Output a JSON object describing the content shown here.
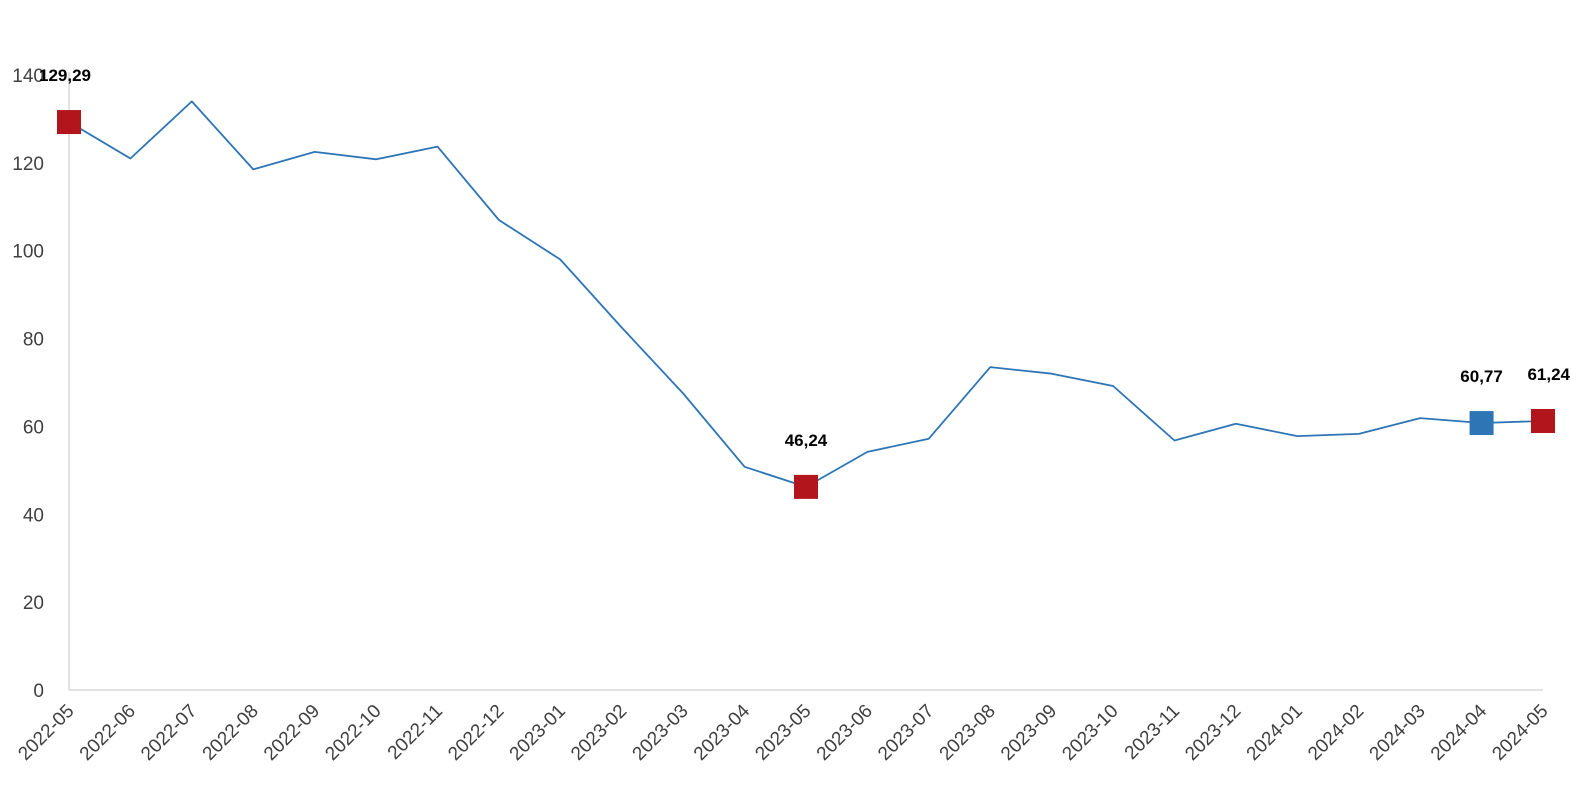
{
  "chart_data": {
    "type": "line",
    "title": "",
    "xlabel": "",
    "ylabel": "",
    "ylim": [
      0,
      140
    ],
    "yticks": [
      0,
      20,
      40,
      60,
      80,
      100,
      120,
      140
    ],
    "ytick_labels": [
      "0",
      "20",
      "40",
      "60",
      "80",
      "100",
      "120",
      "140"
    ],
    "grid": false,
    "legend": "none",
    "categories": [
      "2022-05",
      "2022-06",
      "2022-07",
      "2022-08",
      "2022-09",
      "2022-10",
      "2022-11",
      "2022-12",
      "2023-01",
      "2023-02",
      "2023-03",
      "2023-04",
      "2023-05",
      "2023-06",
      "2023-07",
      "2023-08",
      "2023-09",
      "2023-10",
      "2023-11",
      "2023-12",
      "2024-01",
      "2024-02",
      "2024-03",
      "2024-04",
      "2024-05"
    ],
    "series": [
      {
        "color": "#2e75b6",
        "values": [
          129.29,
          121.0,
          134.0,
          118.5,
          122.5,
          120.8,
          123.7,
          107.0,
          98.0,
          82.5,
          67.5,
          50.8,
          46.24,
          54.2,
          57.2,
          73.5,
          72.0,
          69.2,
          56.8,
          60.6,
          57.8,
          58.3,
          61.9,
          60.77,
          61.24
        ]
      }
    ],
    "highlighted_points": [
      {
        "category": "2022-05",
        "value": 129.29,
        "label": "129,29",
        "color": "#b2151c"
      },
      {
        "category": "2023-05",
        "value": 46.24,
        "label": "46,24",
        "color": "#b2151c"
      },
      {
        "category": "2024-04",
        "value": 60.77,
        "label": "60,77",
        "color": "#2e75b6"
      },
      {
        "category": "2024-05",
        "value": 61.24,
        "label": "61,24",
        "color": "#b2151c"
      }
    ],
    "axis_color": "#d9d9d9"
  }
}
